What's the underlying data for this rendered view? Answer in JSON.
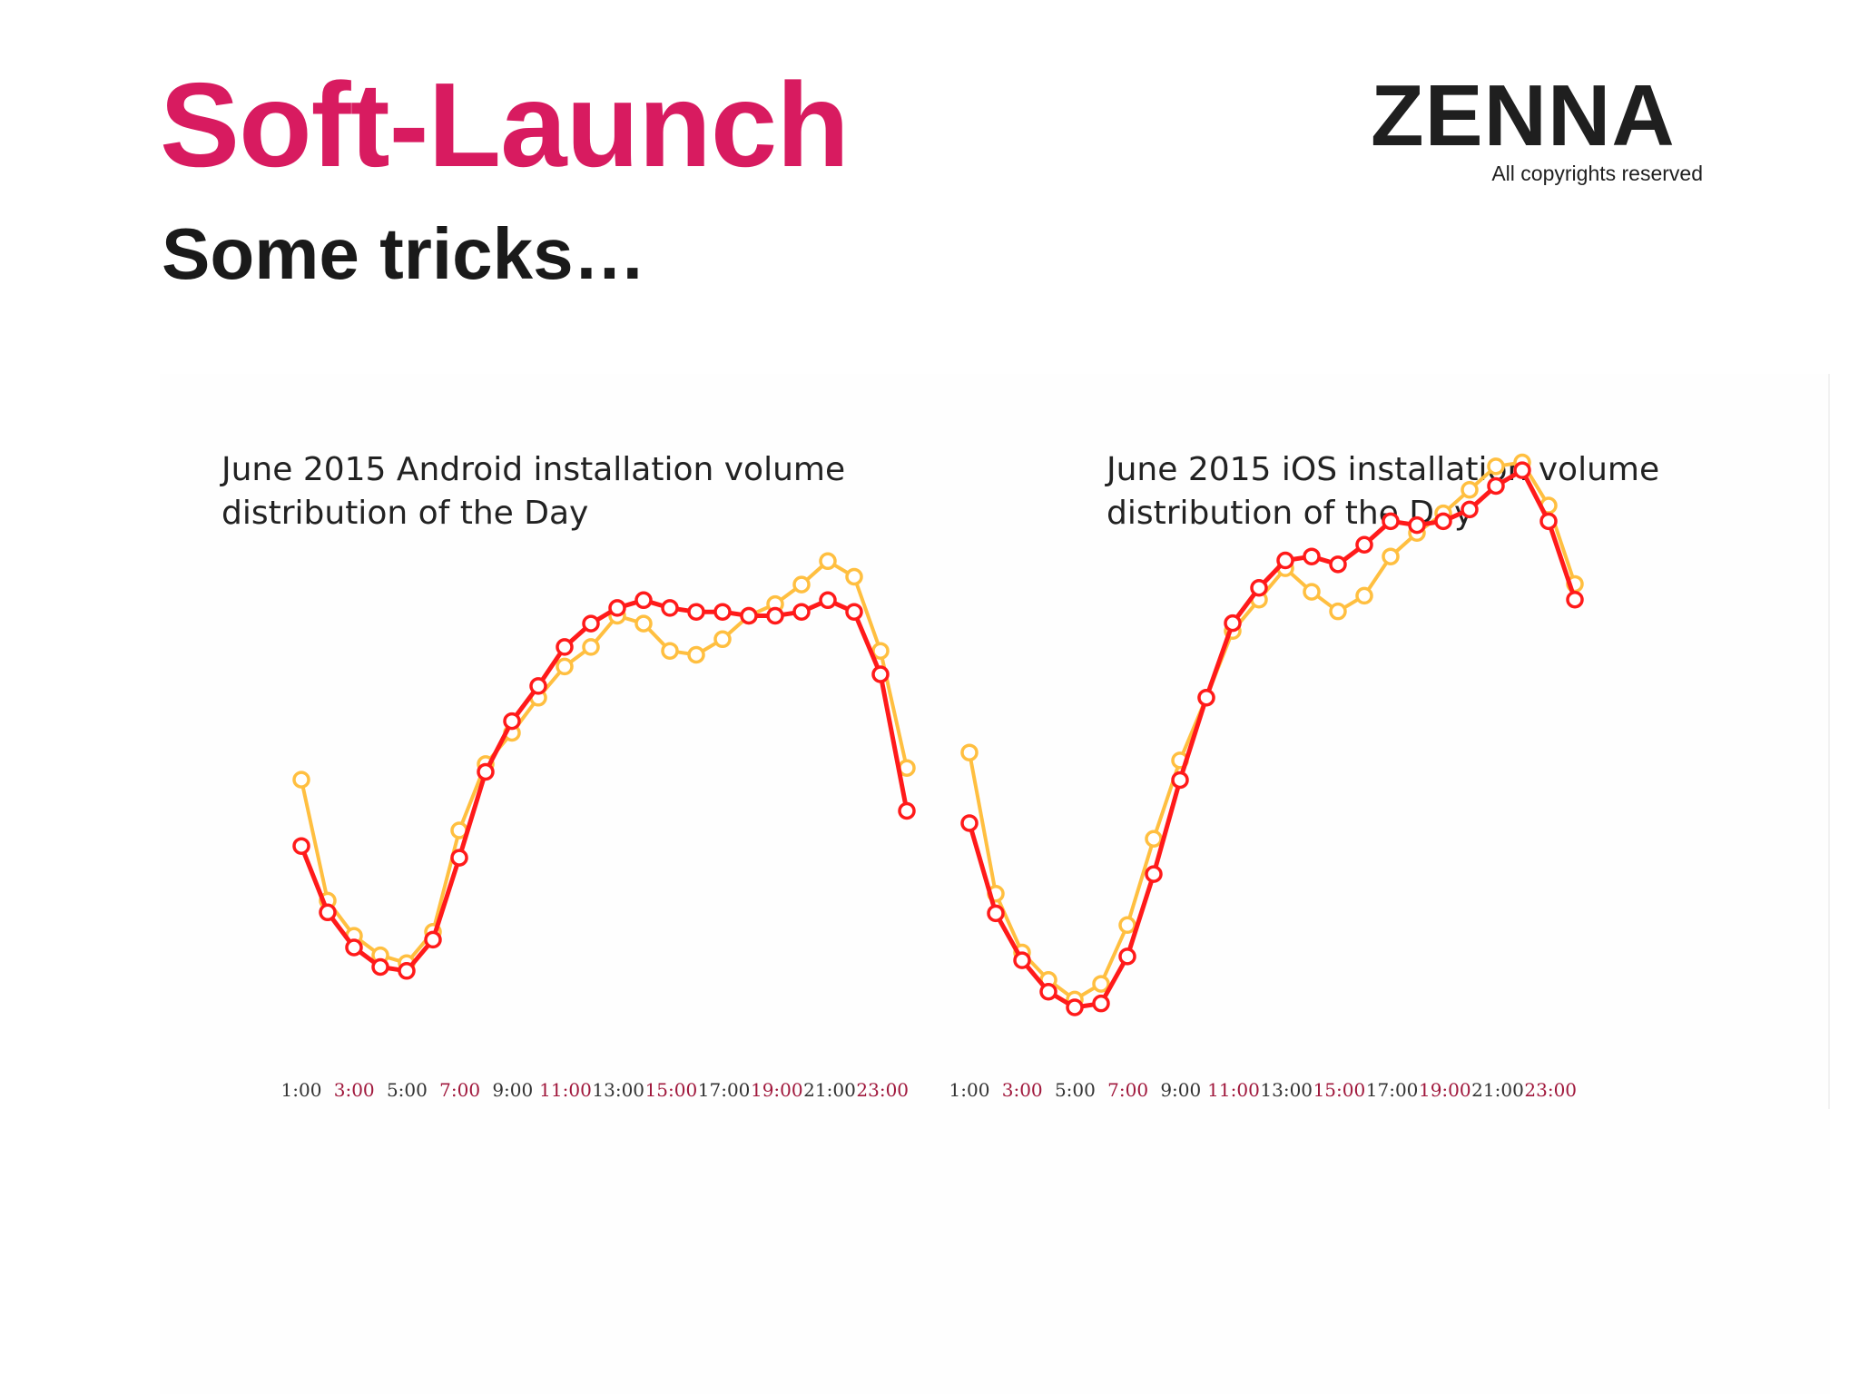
{
  "slide": {
    "title": "Soft-Launch",
    "subtitle": "Some tricks…",
    "title_color": "#d81b60",
    "subtitle_color": "#1a1a1a"
  },
  "logo": {
    "wordmark": "ZENNA",
    "tagline": "All copyrights reserved"
  },
  "colors": {
    "series_current": "#ff1a1a",
    "series_comparison": "#ffbf40",
    "tick_dark": "#333333",
    "tick_accent": "#a0183c"
  },
  "chart_data": [
    {
      "type": "line",
      "title": "June 2015 Android installation volume distribution of the Day",
      "x_tick_labels": [
        "1:00",
        "3:00",
        "5:00",
        "7:00",
        "9:00",
        "11:00",
        "13:00",
        "15:00",
        "17:00",
        "19:00",
        "21:00",
        "23:00"
      ],
      "x": [
        1,
        2,
        3,
        4,
        5,
        6,
        7,
        8,
        9,
        10,
        11,
        12,
        13,
        14,
        15,
        16,
        17,
        18,
        19,
        20,
        21,
        22,
        23,
        24
      ],
      "yaxis_visible": false,
      "grid": false,
      "legend": "none",
      "series": [
        {
          "color": "#ff1a1a",
          "values": [
            36,
            19,
            10,
            5,
            4,
            12,
            33,
            55,
            68,
            77,
            87,
            93,
            97,
            99,
            97,
            96,
            96,
            95,
            95,
            96,
            99,
            96,
            80,
            45
          ]
        },
        {
          "color": "#ffbf40",
          "values": [
            53,
            22,
            13,
            8,
            6,
            14,
            40,
            57,
            65,
            74,
            82,
            87,
            95,
            93,
            86,
            85,
            89,
            95,
            98,
            103,
            109,
            105,
            86,
            56
          ]
        }
      ]
    },
    {
      "type": "line",
      "title": "June 2015 iOS installation volume distribution of the Day",
      "x_tick_labels": [
        "1:00",
        "3:00",
        "5:00",
        "7:00",
        "9:00",
        "11:00",
        "13:00",
        "15:00",
        "17:00",
        "19:00",
        "21:00",
        "23:00"
      ],
      "x": [
        1,
        2,
        3,
        4,
        5,
        6,
        7,
        8,
        9,
        10,
        11,
        12,
        13,
        14,
        15,
        16,
        17,
        18,
        19,
        20,
        21,
        22,
        23,
        24
      ],
      "yaxis_visible": false,
      "grid": false,
      "legend": "none",
      "series": [
        {
          "color": "#ff1a1a",
          "values": [
            47,
            24,
            12,
            4,
            0,
            1,
            13,
            34,
            58,
            79,
            98,
            107,
            114,
            115,
            113,
            118,
            124,
            123,
            124,
            127,
            133,
            137,
            124,
            104
          ]
        },
        {
          "color": "#ffbf40",
          "values": [
            65,
            29,
            14,
            7,
            2,
            6,
            21,
            43,
            63,
            79,
            96,
            104,
            112,
            106,
            101,
            105,
            115,
            121,
            126,
            132,
            138,
            139,
            128,
            108
          ]
        }
      ]
    }
  ]
}
